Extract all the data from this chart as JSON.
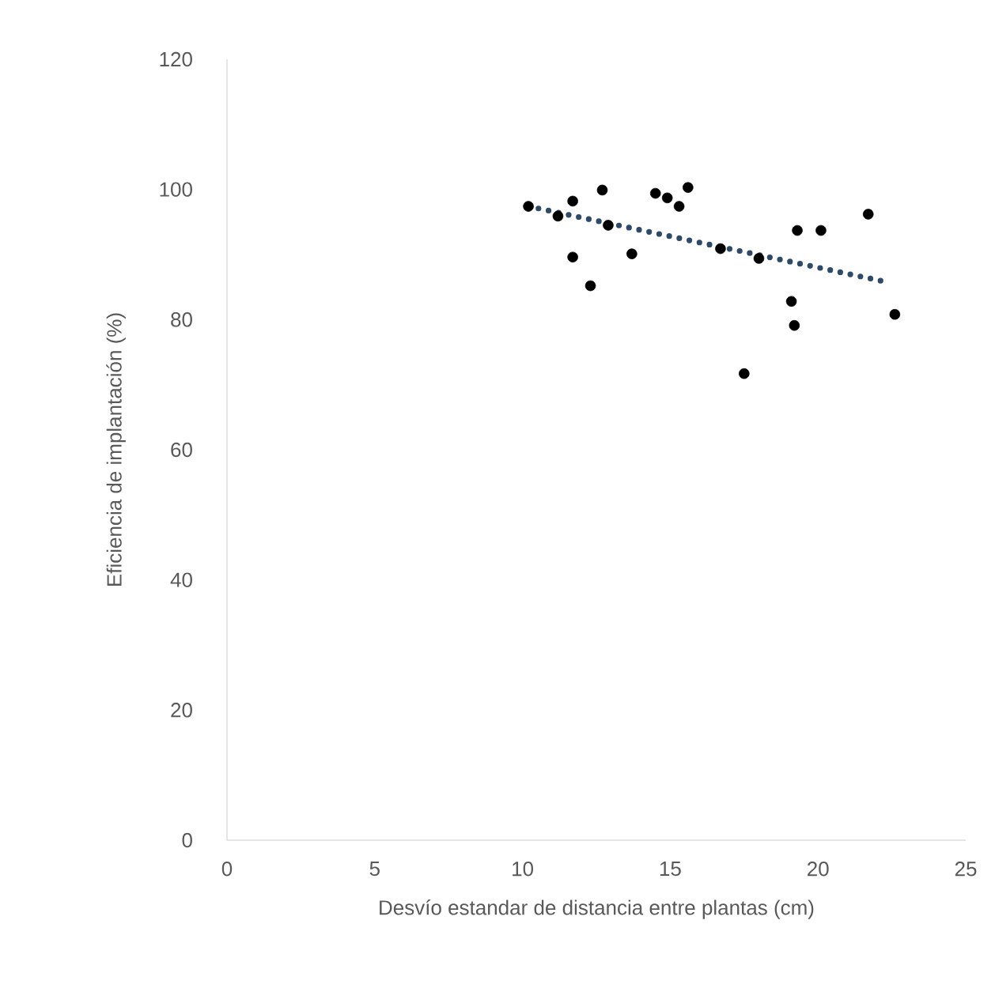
{
  "chart_data": {
    "type": "scatter",
    "xlabel": "Desvío estandar de distancia entre plantas (cm)",
    "ylabel": "Eficiencia de implantación (%)",
    "xlim": [
      0,
      25
    ],
    "ylim": [
      0,
      120
    ],
    "xticks": [
      0,
      5,
      10,
      15,
      20,
      25
    ],
    "yticks": [
      0,
      20,
      40,
      60,
      80,
      100,
      120
    ],
    "marker": "circle",
    "series": [
      {
        "color": "#000000",
        "x": [
          10.2,
          11.2,
          11.7,
          12.7,
          12.9,
          11.7,
          12.3,
          13.7,
          14.5,
          14.9,
          15.3,
          15.6,
          16.7,
          18.0,
          17.5,
          19.1,
          19.2,
          19.3,
          20.1,
          21.7,
          22.6
        ],
        "values": [
          97.4,
          95.9,
          98.2,
          99.9,
          94.5,
          89.6,
          85.2,
          90.1,
          99.4,
          98.7,
          97.4,
          100.3,
          90.9,
          89.4,
          71.7,
          82.8,
          79.1,
          93.7,
          93.7,
          96.2,
          80.8
        ]
      },
      {
        "type": "line",
        "color": "#2e4a66",
        "line_style": "dotted",
        "marker": "none",
        "x": [
          10.2,
          22.4
        ],
        "values": [
          97.4,
          85.7
        ]
      }
    ]
  }
}
